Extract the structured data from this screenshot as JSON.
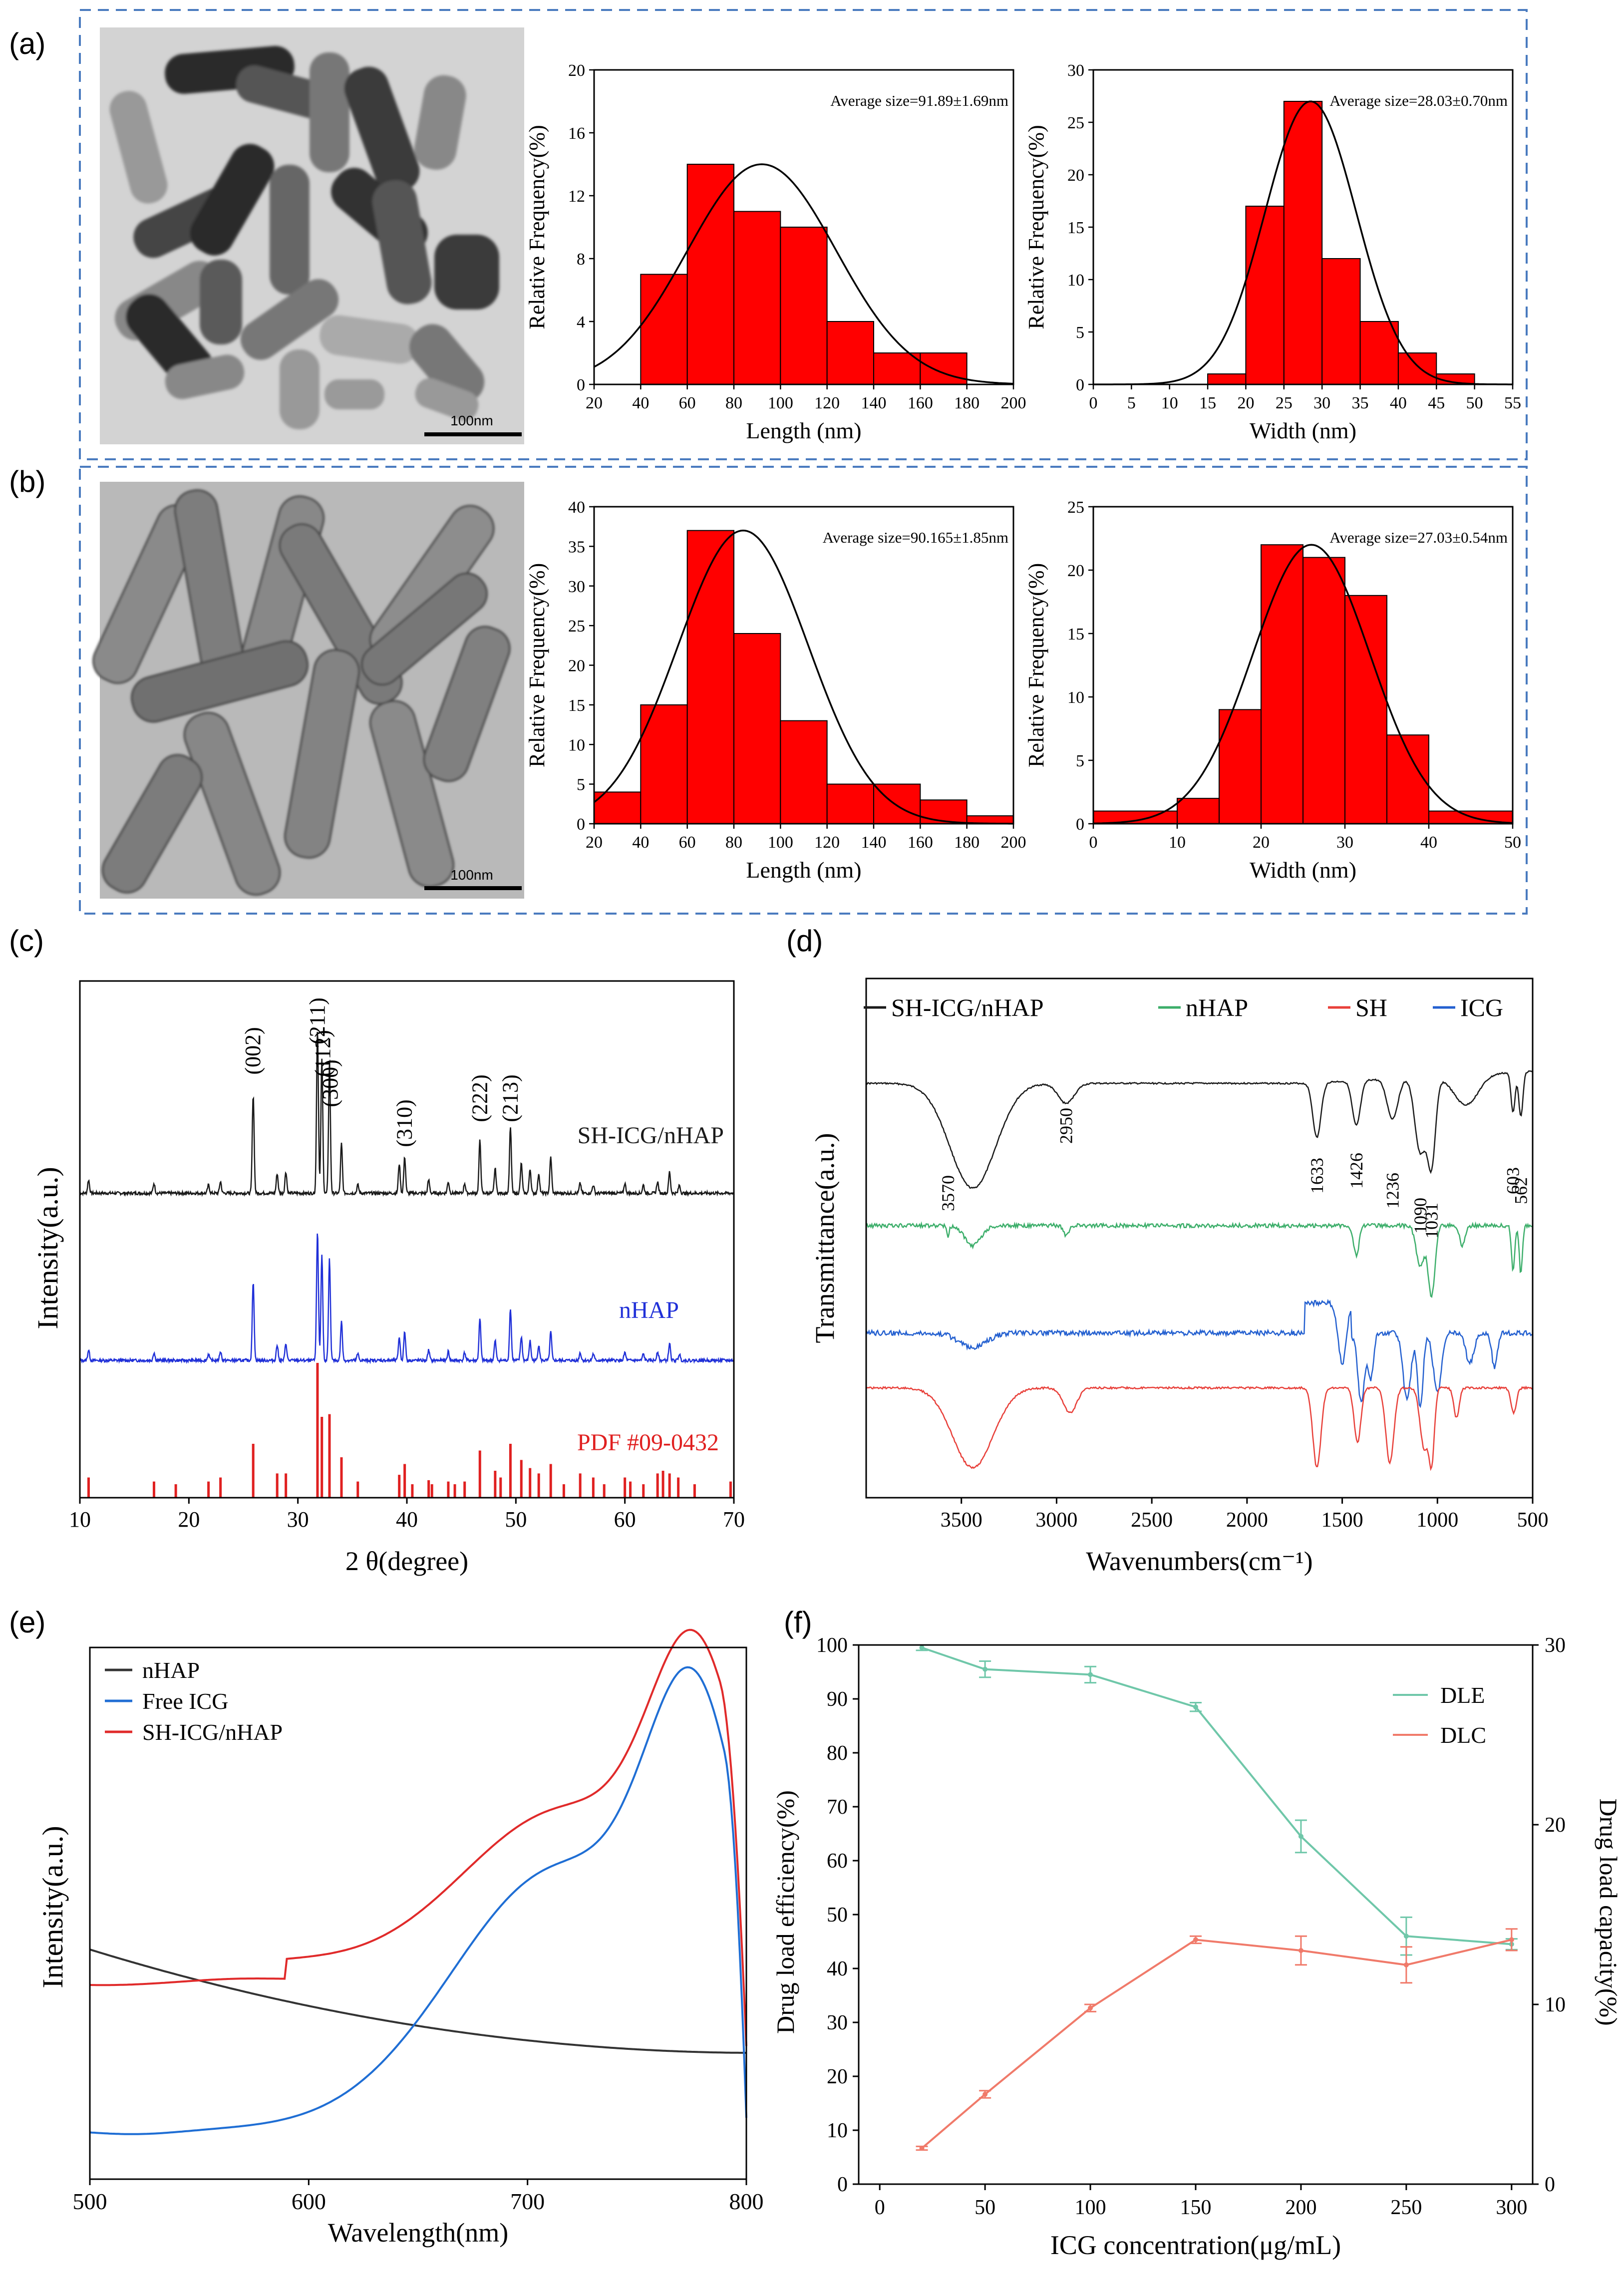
{
  "colors": {
    "bar": "#ff0000",
    "fit": "#000000",
    "dash": "#4a7bbf",
    "black": "#1a1a1a",
    "green": "#3cae6a",
    "red": "#e8403a",
    "blue": "#2460d0",
    "dle": "#6fc7a9",
    "dlc": "#f07a6a"
  },
  "panels": {
    "a": "(a)",
    "b": "(b)",
    "c": "(c)",
    "d": "(d)",
    "e": "(e)",
    "f": "(f)"
  },
  "tem": {
    "a_scale": "100nm",
    "b_scale": "100nm"
  },
  "chart_data": [
    {
      "id": "a_length",
      "type": "bar",
      "bins": [
        [
          40,
          60
        ],
        [
          60,
          80
        ],
        [
          80,
          100
        ],
        [
          100,
          120
        ],
        [
          120,
          140
        ],
        [
          140,
          160
        ],
        [
          160,
          180
        ]
      ],
      "values": [
        7,
        14,
        11,
        10,
        4,
        2,
        2
      ],
      "fit": {
        "mean": 92,
        "sd": 32,
        "peak": 14
      },
      "xlim": [
        20,
        200
      ],
      "ylim": [
        0,
        20
      ],
      "xticks": [
        20,
        40,
        60,
        80,
        100,
        120,
        140,
        160,
        180,
        200
      ],
      "yticks": [
        0,
        4,
        8,
        12,
        16,
        20
      ],
      "xlabel": "Length (nm)",
      "ylabel": "Relative Frequency(%)",
      "annotation": "Average size=91.89±1.69nm"
    },
    {
      "id": "a_width",
      "type": "bar",
      "bins": [
        [
          15,
          20
        ],
        [
          20,
          25
        ],
        [
          25,
          30
        ],
        [
          30,
          35
        ],
        [
          35,
          40
        ],
        [
          40,
          45
        ],
        [
          45,
          50
        ]
      ],
      "values": [
        1,
        17,
        27,
        12,
        6,
        3,
        1
      ],
      "fit": {
        "mean": 28.5,
        "sd": 6.0,
        "peak": 27
      },
      "xlim": [
        0,
        55
      ],
      "ylim": [
        0,
        30
      ],
      "xticks": [
        0,
        5,
        10,
        15,
        20,
        25,
        30,
        35,
        40,
        45,
        50,
        55
      ],
      "yticks": [
        0,
        5,
        10,
        15,
        20,
        25,
        30
      ],
      "xlabel": "Width (nm)",
      "ylabel": "Relative Frequency(%)",
      "annotation": "Average size=28.03±0.70nm"
    },
    {
      "id": "b_length",
      "type": "bar",
      "bins": [
        [
          20,
          40
        ],
        [
          40,
          60
        ],
        [
          60,
          80
        ],
        [
          80,
          100
        ],
        [
          100,
          120
        ],
        [
          120,
          140
        ],
        [
          140,
          160
        ],
        [
          160,
          180
        ],
        [
          180,
          200
        ]
      ],
      "values": [
        4,
        15,
        37,
        24,
        13,
        5,
        5,
        3,
        1
      ],
      "fit": {
        "mean": 84,
        "sd": 28,
        "peak": 37
      },
      "xlim": [
        20,
        200
      ],
      "ylim": [
        0,
        40
      ],
      "xticks": [
        20,
        40,
        60,
        80,
        100,
        120,
        140,
        160,
        180,
        200
      ],
      "yticks": [
        0,
        5,
        10,
        15,
        20,
        25,
        30,
        35,
        40
      ],
      "xlabel": "Length (nm)",
      "ylabel": "Relative Frequency(%)",
      "annotation": "Average size=90.165±1.85nm"
    },
    {
      "id": "b_width",
      "type": "bar",
      "bins": [
        [
          0,
          10
        ],
        [
          10,
          15
        ],
        [
          15,
          20
        ],
        [
          20,
          25
        ],
        [
          25,
          30
        ],
        [
          30,
          35
        ],
        [
          35,
          40
        ],
        [
          40,
          50
        ]
      ],
      "values": [
        1,
        2,
        9,
        22,
        21,
        18,
        7,
        1
      ],
      "fit": {
        "mean": 26,
        "sd": 7,
        "peak": 22
      },
      "xlim": [
        0,
        50
      ],
      "ylim": [
        0,
        25
      ],
      "xticks": [
        0,
        10,
        20,
        30,
        40,
        50
      ],
      "yticks": [
        0,
        5,
        10,
        15,
        20,
        25
      ],
      "xlabel": "Width (nm)",
      "ylabel": "Relative Frequency(%)",
      "annotation": "Average size=27.03±0.54nm"
    },
    {
      "id": "c_xrd",
      "type": "line",
      "xlim": [
        10,
        70
      ],
      "xticks": [
        10,
        20,
        30,
        40,
        50,
        60,
        70
      ],
      "xlabel": "2 θ(degree)",
      "ylabel": "Intensity(a.u.)",
      "peaks": [
        {
          "pos": 10.8,
          "i": 0.08
        },
        {
          "pos": 16.8,
          "i": 0.06
        },
        {
          "pos": 21.8,
          "i": 0.05
        },
        {
          "pos": 22.9,
          "i": 0.07
        },
        {
          "pos": 25.9,
          "i": 0.6
        },
        {
          "pos": 28.1,
          "i": 0.12
        },
        {
          "pos": 28.9,
          "i": 0.13
        },
        {
          "pos": 31.8,
          "i": 1.0
        },
        {
          "pos": 32.2,
          "i": 0.82
        },
        {
          "pos": 32.9,
          "i": 0.78
        },
        {
          "pos": 34.0,
          "i": 0.3
        },
        {
          "pos": 35.5,
          "i": 0.05
        },
        {
          "pos": 39.3,
          "i": 0.18
        },
        {
          "pos": 39.8,
          "i": 0.22
        },
        {
          "pos": 42.0,
          "i": 0.08
        },
        {
          "pos": 43.8,
          "i": 0.07
        },
        {
          "pos": 45.3,
          "i": 0.06
        },
        {
          "pos": 46.7,
          "i": 0.32
        },
        {
          "pos": 48.1,
          "i": 0.15
        },
        {
          "pos": 49.5,
          "i": 0.4
        },
        {
          "pos": 50.5,
          "i": 0.18
        },
        {
          "pos": 51.3,
          "i": 0.15
        },
        {
          "pos": 52.1,
          "i": 0.12
        },
        {
          "pos": 53.2,
          "i": 0.22
        },
        {
          "pos": 55.9,
          "i": 0.06
        },
        {
          "pos": 57.1,
          "i": 0.05
        },
        {
          "pos": 60.0,
          "i": 0.06
        },
        {
          "pos": 61.7,
          "i": 0.05
        },
        {
          "pos": 63.0,
          "i": 0.07
        },
        {
          "pos": 64.1,
          "i": 0.13
        },
        {
          "pos": 65.0,
          "i": 0.05
        }
      ],
      "refs": [
        10.8,
        16.8,
        18.8,
        21.8,
        22.9,
        25.9,
        28.1,
        28.9,
        31.8,
        32.2,
        32.9,
        34.0,
        35.5,
        39.3,
        39.8,
        40.5,
        42.0,
        42.3,
        43.8,
        44.4,
        45.3,
        46.7,
        48.1,
        48.6,
        49.5,
        50.5,
        51.3,
        52.1,
        53.2,
        54.4,
        55.9,
        57.1,
        58.1,
        60.0,
        60.5,
        61.7,
        63.0,
        63.5,
        64.1,
        64.9,
        66.4,
        69.7
      ],
      "ref_heights": [
        0.15,
        0.12,
        0.1,
        0.12,
        0.15,
        0.4,
        0.18,
        0.18,
        1.0,
        0.6,
        0.62,
        0.3,
        0.12,
        0.17,
        0.25,
        0.1,
        0.13,
        0.1,
        0.12,
        0.1,
        0.12,
        0.35,
        0.2,
        0.15,
        0.4,
        0.28,
        0.22,
        0.18,
        0.25,
        0.1,
        0.18,
        0.15,
        0.1,
        0.15,
        0.12,
        0.1,
        0.18,
        0.2,
        0.18,
        0.15,
        0.1,
        0.12
      ],
      "peak_labels": [
        {
          "text": "(002)",
          "pos": 25.9
        },
        {
          "text": "(211)",
          "pos": 31.8
        },
        {
          "text": "(112)",
          "pos": 32.3
        },
        {
          "text": "(300)",
          "pos": 33.0
        },
        {
          "text": "(310)",
          "pos": 39.8
        },
        {
          "text": "(222)",
          "pos": 46.7
        },
        {
          "text": "(213)",
          "pos": 49.5
        }
      ],
      "series": [
        {
          "name": "SH-ICG/nHAP",
          "color": "#1a1a1a"
        },
        {
          "name": "nHAP",
          "color": "#2030d8"
        },
        {
          "name": "PDF #09-0432",
          "color": "#e02020"
        }
      ]
    },
    {
      "id": "d_ftir",
      "type": "line",
      "xlim": [
        4000,
        500
      ],
      "xticks": [
        3500,
        3000,
        2500,
        2000,
        1500,
        1000,
        500
      ],
      "xlabel": "Wavenumbers(cm⁻¹)",
      "ylabel": "Transmittance(a.u.)",
      "legend": [
        "SH-ICG/nHAP",
        "nHAP",
        "SH",
        "ICG"
      ],
      "band_labels": [
        "3570",
        "2950",
        "1633",
        "1426",
        "1236",
        "1090",
        "1031",
        "603",
        "562"
      ],
      "series": [
        {
          "name": "SH-ICG/nHAP",
          "color": "#1a1a1a"
        },
        {
          "name": "nHAP",
          "color": "#3cae6a"
        },
        {
          "name": "SH",
          "color": "#e8403a"
        },
        {
          "name": "ICG",
          "color": "#2460d0"
        }
      ]
    },
    {
      "id": "e_uvvis",
      "type": "line",
      "xlim": [
        500,
        800
      ],
      "xticks": [
        500,
        600,
        700,
        800
      ],
      "xlabel": "Wavelength(nm)",
      "ylabel": "Intensity(a.u.)",
      "series": [
        {
          "name": "nHAP",
          "color": "#333333"
        },
        {
          "name": "Free ICG",
          "color": "#1f6ed4"
        },
        {
          "name": "SH-ICG/nHAP",
          "color": "#e02a2a"
        }
      ]
    },
    {
      "id": "f_loading",
      "type": "line",
      "x": [
        20,
        50,
        100,
        150,
        200,
        250,
        300
      ],
      "xlim": [
        -10,
        310
      ],
      "xticks": [
        0,
        50,
        100,
        150,
        200,
        250,
        300
      ],
      "ylim": [
        0,
        100
      ],
      "yticks": [
        0,
        10,
        20,
        30,
        40,
        50,
        60,
        70,
        80,
        90,
        100
      ],
      "y2lim": [
        0,
        30
      ],
      "y2ticks": [
        0,
        10,
        20,
        30
      ],
      "xlabel": "ICG concentration(μg/mL)",
      "ylabel": "Drug load efficiency(%)",
      "y2label": "Drug load capacity(%)",
      "series": [
        {
          "name": "DLE",
          "axis": "left",
          "values": [
            99.5,
            95.5,
            94.5,
            88.5,
            64.5,
            46.0,
            44.5
          ],
          "err": [
            0.5,
            1.5,
            1.5,
            0.8,
            3.0,
            3.5,
            1.0
          ]
        },
        {
          "name": "DLC",
          "axis": "right",
          "values": [
            2.0,
            5.0,
            9.8,
            13.6,
            13.0,
            12.2,
            13.6
          ],
          "err": [
            0.1,
            0.2,
            0.2,
            0.2,
            0.8,
            1.0,
            0.6
          ]
        }
      ]
    }
  ]
}
